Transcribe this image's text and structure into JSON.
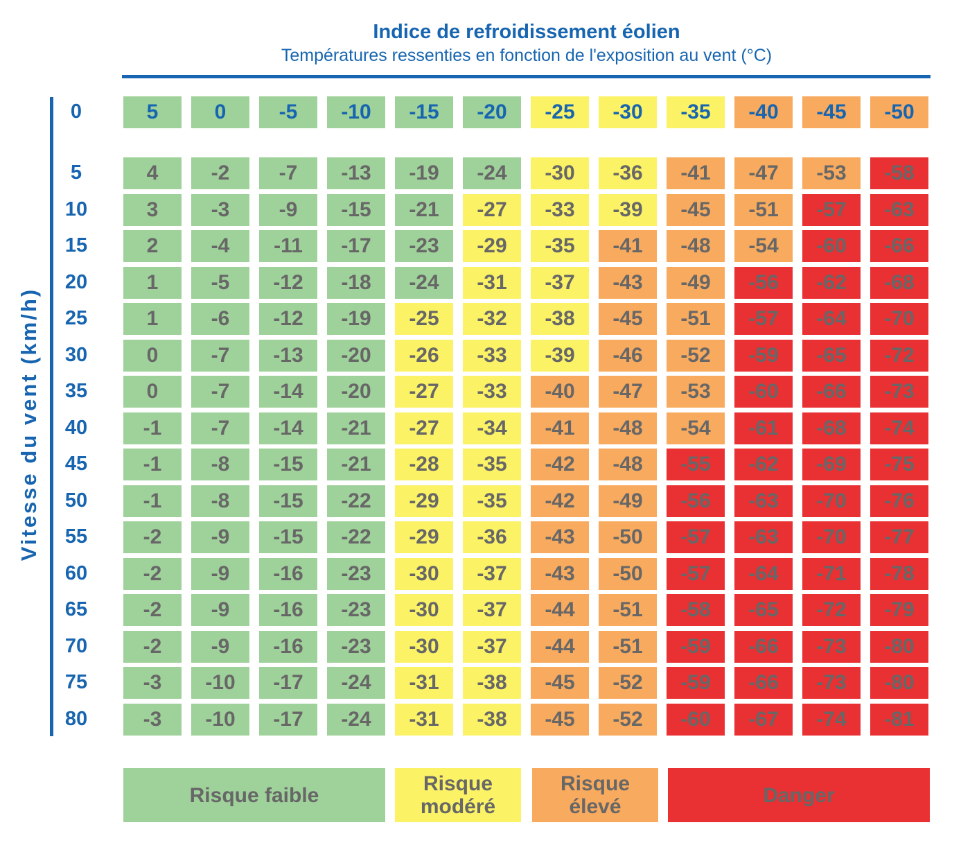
{
  "header": {
    "title": "Indice de refroidissement éolien",
    "subtitle": "Températures ressenties en fonction de l'exposition au vent (°C)"
  },
  "axis_label": "Vitesse du vent (km/h)",
  "table": {
    "rows": [
      {
        "speed": 0,
        "values": [
          5,
          0,
          -5,
          -10,
          -15,
          -20,
          -25,
          -30,
          -35,
          -40,
          -45,
          -50
        ],
        "colors": [
          "#9fd19a",
          "#9fd19a",
          "#9fd19a",
          "#9fd19a",
          "#9fd19a",
          "#9fd19a",
          "#fbf266",
          "#fbf266",
          "#fbf266",
          "#f8aa5e",
          "#f8aa5e",
          "#f8aa5e"
        ]
      },
      {
        "speed": 5,
        "values": [
          4,
          -2,
          -7,
          -13,
          -19,
          -24,
          -30,
          -36,
          -41,
          -47,
          -53,
          -58
        ],
        "colors": [
          "#9fd19a",
          "#9fd19a",
          "#9fd19a",
          "#9fd19a",
          "#9fd19a",
          "#9fd19a",
          "#fbf266",
          "#fbf266",
          "#f8aa5e",
          "#f8aa5e",
          "#f8aa5e",
          "#e93033"
        ]
      },
      {
        "speed": 10,
        "values": [
          3,
          -3,
          -9,
          -15,
          -21,
          -27,
          -33,
          -39,
          -45,
          -51,
          -57,
          -63
        ],
        "colors": [
          "#9fd19a",
          "#9fd19a",
          "#9fd19a",
          "#9fd19a",
          "#9fd19a",
          "#fbf266",
          "#fbf266",
          "#fbf266",
          "#f8aa5e",
          "#f8aa5e",
          "#e93033",
          "#e93033"
        ]
      },
      {
        "speed": 15,
        "values": [
          2,
          -4,
          -11,
          -17,
          -23,
          -29,
          -35,
          -41,
          -48,
          -54,
          -60,
          -66
        ],
        "colors": [
          "#9fd19a",
          "#9fd19a",
          "#9fd19a",
          "#9fd19a",
          "#9fd19a",
          "#fbf266",
          "#fbf266",
          "#f8aa5e",
          "#f8aa5e",
          "#f8aa5e",
          "#e93033",
          "#e93033"
        ]
      },
      {
        "speed": 20,
        "values": [
          1,
          -5,
          -12,
          -18,
          -24,
          -31,
          -37,
          -43,
          -49,
          -56,
          -62,
          -68
        ],
        "colors": [
          "#9fd19a",
          "#9fd19a",
          "#9fd19a",
          "#9fd19a",
          "#9fd19a",
          "#fbf266",
          "#fbf266",
          "#f8aa5e",
          "#f8aa5e",
          "#e93033",
          "#e93033",
          "#e93033"
        ]
      },
      {
        "speed": 25,
        "values": [
          1,
          -6,
          -12,
          -19,
          -25,
          -32,
          -38,
          -45,
          -51,
          -57,
          -64,
          -70
        ],
        "colors": [
          "#9fd19a",
          "#9fd19a",
          "#9fd19a",
          "#9fd19a",
          "#fbf266",
          "#fbf266",
          "#fbf266",
          "#f8aa5e",
          "#f8aa5e",
          "#e93033",
          "#e93033",
          "#e93033"
        ]
      },
      {
        "speed": 30,
        "values": [
          0,
          -7,
          -13,
          -20,
          -26,
          -33,
          -39,
          -46,
          -52,
          -59,
          -65,
          -72
        ],
        "colors": [
          "#9fd19a",
          "#9fd19a",
          "#9fd19a",
          "#9fd19a",
          "#fbf266",
          "#fbf266",
          "#fbf266",
          "#f8aa5e",
          "#f8aa5e",
          "#e93033",
          "#e93033",
          "#e93033"
        ]
      },
      {
        "speed": 35,
        "values": [
          0,
          -7,
          -14,
          -20,
          -27,
          -33,
          -40,
          -47,
          -53,
          -60,
          -66,
          -73
        ],
        "colors": [
          "#9fd19a",
          "#9fd19a",
          "#9fd19a",
          "#9fd19a",
          "#fbf266",
          "#fbf266",
          "#f8aa5e",
          "#f8aa5e",
          "#f8aa5e",
          "#e93033",
          "#e93033",
          "#e93033"
        ]
      },
      {
        "speed": 40,
        "values": [
          -1,
          -7,
          -14,
          -21,
          -27,
          -34,
          -41,
          -48,
          -54,
          -61,
          -68,
          -74
        ],
        "colors": [
          "#9fd19a",
          "#9fd19a",
          "#9fd19a",
          "#9fd19a",
          "#fbf266",
          "#fbf266",
          "#f8aa5e",
          "#f8aa5e",
          "#f8aa5e",
          "#e93033",
          "#e93033",
          "#e93033"
        ]
      },
      {
        "speed": 45,
        "values": [
          -1,
          -8,
          -15,
          -21,
          -28,
          -35,
          -42,
          -48,
          -55,
          -62,
          -69,
          -75
        ],
        "colors": [
          "#9fd19a",
          "#9fd19a",
          "#9fd19a",
          "#9fd19a",
          "#fbf266",
          "#fbf266",
          "#f8aa5e",
          "#f8aa5e",
          "#e93033",
          "#e93033",
          "#e93033",
          "#e93033"
        ]
      },
      {
        "speed": 50,
        "values": [
          -1,
          -8,
          -15,
          -22,
          -29,
          -35,
          -42,
          -49,
          -56,
          -63,
          -70,
          -76
        ],
        "colors": [
          "#9fd19a",
          "#9fd19a",
          "#9fd19a",
          "#9fd19a",
          "#fbf266",
          "#fbf266",
          "#f8aa5e",
          "#f8aa5e",
          "#e93033",
          "#e93033",
          "#e93033",
          "#e93033"
        ]
      },
      {
        "speed": 55,
        "values": [
          -2,
          -9,
          -15,
          -22,
          -29,
          -36,
          -43,
          -50,
          -57,
          -63,
          -70,
          -77
        ],
        "colors": [
          "#9fd19a",
          "#9fd19a",
          "#9fd19a",
          "#9fd19a",
          "#fbf266",
          "#fbf266",
          "#f8aa5e",
          "#f8aa5e",
          "#e93033",
          "#e93033",
          "#e93033",
          "#e93033"
        ]
      },
      {
        "speed": 60,
        "values": [
          -2,
          -9,
          -16,
          -23,
          -30,
          -37,
          -43,
          -50,
          -57,
          -64,
          -71,
          -78
        ],
        "colors": [
          "#9fd19a",
          "#9fd19a",
          "#9fd19a",
          "#9fd19a",
          "#fbf266",
          "#fbf266",
          "#f8aa5e",
          "#f8aa5e",
          "#e93033",
          "#e93033",
          "#e93033",
          "#e93033"
        ]
      },
      {
        "speed": 65,
        "values": [
          -2,
          -9,
          -16,
          -23,
          -30,
          -37,
          -44,
          -51,
          -58,
          -65,
          -72,
          -79
        ],
        "colors": [
          "#9fd19a",
          "#9fd19a",
          "#9fd19a",
          "#9fd19a",
          "#fbf266",
          "#fbf266",
          "#f8aa5e",
          "#f8aa5e",
          "#e93033",
          "#e93033",
          "#e93033",
          "#e93033"
        ]
      },
      {
        "speed": 70,
        "values": [
          -2,
          -9,
          -16,
          -23,
          -30,
          -37,
          -44,
          -51,
          -59,
          -66,
          -73,
          -80
        ],
        "colors": [
          "#9fd19a",
          "#9fd19a",
          "#9fd19a",
          "#9fd19a",
          "#fbf266",
          "#fbf266",
          "#f8aa5e",
          "#f8aa5e",
          "#e93033",
          "#e93033",
          "#e93033",
          "#e93033"
        ]
      },
      {
        "speed": 75,
        "values": [
          -3,
          -10,
          -17,
          -24,
          -31,
          -38,
          -45,
          -52,
          -59,
          -66,
          -73,
          -80
        ],
        "colors": [
          "#9fd19a",
          "#9fd19a",
          "#9fd19a",
          "#9fd19a",
          "#fbf266",
          "#fbf266",
          "#f8aa5e",
          "#f8aa5e",
          "#e93033",
          "#e93033",
          "#e93033",
          "#e93033"
        ]
      },
      {
        "speed": 80,
        "values": [
          -3,
          -10,
          -17,
          -24,
          -31,
          -38,
          -45,
          -52,
          -60,
          -67,
          -74,
          -81
        ],
        "colors": [
          "#9fd19a",
          "#9fd19a",
          "#9fd19a",
          "#9fd19a",
          "#fbf266",
          "#fbf266",
          "#f8aa5e",
          "#f8aa5e",
          "#e93033",
          "#e93033",
          "#e93033",
          "#e93033"
        ]
      }
    ]
  },
  "legend": [
    {
      "label": "Risque faible",
      "color": "#9fd19a"
    },
    {
      "label": "Risque modéré",
      "color": "#fbf266"
    },
    {
      "label": "Risque élevé",
      "color": "#f8aa5e"
    },
    {
      "label": "Danger",
      "color": "#e93033"
    }
  ]
}
